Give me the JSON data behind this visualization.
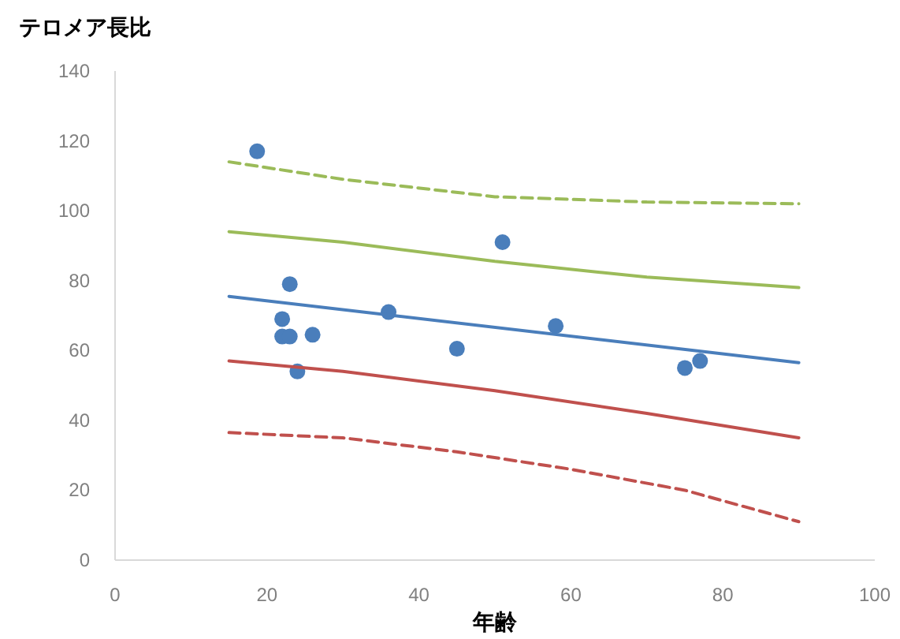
{
  "chart_data": {
    "type": "scatter",
    "xlabel": "年齢",
    "ylabel": "テロメア長比",
    "xlim": [
      0,
      100
    ],
    "xticks": [
      0,
      20,
      40,
      60,
      80,
      100
    ],
    "ylim": [
      0,
      140
    ],
    "yticks": [
      0,
      20,
      40,
      60,
      80,
      100,
      120,
      140
    ],
    "series": [
      {
        "marker": "circle",
        "color": "#4a7ebb",
        "x": [
          18.7,
          23,
          22,
          22,
          23,
          26,
          24,
          36,
          45,
          51,
          58,
          75,
          77
        ],
        "values": [
          117,
          79,
          69,
          64,
          64,
          64.5,
          54,
          71,
          60.5,
          91,
          67,
          55,
          57
        ]
      },
      {
        "type": "line",
        "line_style": "solid",
        "color": "#4a7ebb",
        "x": [
          15,
          90
        ],
        "values": [
          75.5,
          56.5
        ]
      },
      {
        "type": "line",
        "line_style": "solid",
        "color": "#9bbb59",
        "x": [
          15,
          30,
          50,
          70,
          90
        ],
        "values": [
          94,
          91,
          85.5,
          81,
          78
        ]
      },
      {
        "type": "line",
        "line_style": "dashed",
        "color": "#9bbb59",
        "x": [
          15,
          30,
          50,
          70,
          90
        ],
        "values": [
          114,
          109,
          104,
          102.5,
          102
        ]
      },
      {
        "type": "line",
        "line_style": "solid",
        "color": "#c0504d",
        "x": [
          15,
          30,
          50,
          70,
          90
        ],
        "values": [
          57,
          54,
          48.5,
          42,
          35
        ]
      },
      {
        "type": "line",
        "line_style": "dashed",
        "color": "#c0504d",
        "x": [
          15,
          30,
          45,
          60,
          75,
          90
        ],
        "values": [
          36.5,
          35,
          31,
          26,
          20,
          11
        ]
      }
    ]
  }
}
